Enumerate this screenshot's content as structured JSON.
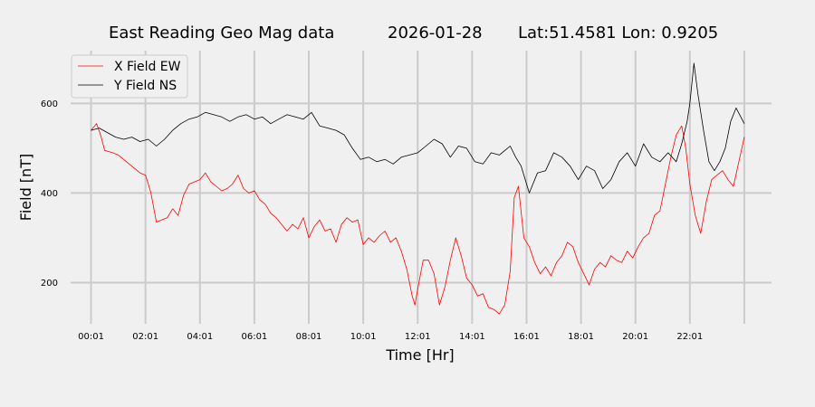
{
  "chart_data": {
    "type": "line",
    "title_parts": [
      "East Reading Geo Mag data",
      "2026-01-28",
      "Lat:51.4581  Lon: 0.9205"
    ],
    "xlabel": "Time  [Hr]",
    "ylabel": "Field  [nT]",
    "x_ticks": [
      "00:01",
      "02:01",
      "04:01",
      "06:01",
      "08:01",
      "10:01",
      "12:01",
      "14:01",
      "16:01",
      "18:01",
      "20:01",
      "22:01"
    ],
    "x_tick_hours": [
      0,
      2,
      4,
      6,
      8,
      10,
      12,
      14,
      16,
      18,
      20,
      22
    ],
    "xlim_hours": [
      -0.75,
      25
    ],
    "y_ticks": [
      200,
      400,
      600
    ],
    "ylim": [
      108,
      718
    ],
    "grid": true,
    "legend_position": "top-left",
    "series": [
      {
        "name": "X Field EW",
        "color": "#ff0000",
        "hours": [
          0,
          0.2,
          0.35,
          0.5,
          0.8,
          1.0,
          1.3,
          1.6,
          1.8,
          2.0,
          2.2,
          2.4,
          2.6,
          2.8,
          3.0,
          3.2,
          3.4,
          3.6,
          3.8,
          4.0,
          4.2,
          4.4,
          4.6,
          4.8,
          5.0,
          5.2,
          5.4,
          5.6,
          5.8,
          6.0,
          6.2,
          6.4,
          6.6,
          6.8,
          7.0,
          7.2,
          7.4,
          7.6,
          7.8,
          8.0,
          8.2,
          8.4,
          8.6,
          8.8,
          9.0,
          9.2,
          9.4,
          9.6,
          9.8,
          10.0,
          10.2,
          10.4,
          10.6,
          10.8,
          11.0,
          11.2,
          11.4,
          11.6,
          11.8,
          11.9,
          12.0,
          12.2,
          12.4,
          12.6,
          12.8,
          13.0,
          13.2,
          13.4,
          13.6,
          13.8,
          14.0,
          14.2,
          14.4,
          14.6,
          14.8,
          15.0,
          15.2,
          15.4,
          15.55,
          15.7,
          15.9,
          16.1,
          16.3,
          16.5,
          16.7,
          16.9,
          17.1,
          17.3,
          17.5,
          17.7,
          17.9,
          18.1,
          18.3,
          18.5,
          18.7,
          18.9,
          19.1,
          19.3,
          19.5,
          19.7,
          19.9,
          20.1,
          20.3,
          20.5,
          20.7,
          20.9,
          21.1,
          21.3,
          21.5,
          21.7,
          21.85,
          22.0,
          22.2,
          22.4,
          22.6,
          22.8,
          23.0,
          23.2,
          23.4,
          23.6,
          23.8,
          24.0
        ],
        "values": [
          540,
          555,
          530,
          495,
          490,
          485,
          470,
          455,
          445,
          440,
          400,
          335,
          340,
          345,
          365,
          350,
          395,
          420,
          425,
          430,
          445,
          425,
          415,
          405,
          410,
          420,
          440,
          410,
          400,
          405,
          385,
          375,
          355,
          345,
          330,
          315,
          330,
          320,
          345,
          300,
          325,
          340,
          315,
          320,
          290,
          330,
          345,
          335,
          340,
          285,
          300,
          290,
          305,
          315,
          290,
          300,
          270,
          230,
          170,
          150,
          185,
          250,
          250,
          220,
          150,
          190,
          250,
          300,
          260,
          210,
          195,
          170,
          175,
          145,
          140,
          130,
          150,
          225,
          390,
          415,
          300,
          280,
          245,
          220,
          235,
          215,
          245,
          260,
          290,
          280,
          245,
          220,
          195,
          230,
          245,
          235,
          260,
          250,
          245,
          270,
          255,
          280,
          300,
          310,
          350,
          360,
          420,
          480,
          530,
          550,
          500,
          420,
          350,
          310,
          380,
          430,
          440,
          450,
          430,
          415,
          470,
          525
        ]
      },
      {
        "name": "Y Field NS",
        "color": "#000000",
        "hours": [
          0,
          0.3,
          0.6,
          0.9,
          1.2,
          1.5,
          1.8,
          2.1,
          2.4,
          2.7,
          3.0,
          3.3,
          3.6,
          3.9,
          4.2,
          4.5,
          4.8,
          5.1,
          5.4,
          5.7,
          6.0,
          6.3,
          6.6,
          6.9,
          7.2,
          7.5,
          7.8,
          8.1,
          8.4,
          8.7,
          9.0,
          9.3,
          9.6,
          9.9,
          10.2,
          10.5,
          10.8,
          11.1,
          11.4,
          11.7,
          12.0,
          12.3,
          12.6,
          12.9,
          13.2,
          13.5,
          13.8,
          14.1,
          14.4,
          14.7,
          15.0,
          15.2,
          15.4,
          15.6,
          15.8,
          16.1,
          16.4,
          16.7,
          17.0,
          17.3,
          17.6,
          17.9,
          18.2,
          18.5,
          18.8,
          19.1,
          19.4,
          19.7,
          20.0,
          20.3,
          20.6,
          20.9,
          21.2,
          21.5,
          21.7,
          21.9,
          22.0,
          22.15,
          22.3,
          22.5,
          22.7,
          22.9,
          23.1,
          23.3,
          23.5,
          23.7,
          24.0
        ],
        "values": [
          540,
          545,
          535,
          525,
          520,
          525,
          515,
          520,
          505,
          520,
          540,
          555,
          565,
          570,
          580,
          575,
          570,
          560,
          570,
          575,
          565,
          570,
          555,
          565,
          575,
          570,
          565,
          580,
          550,
          545,
          540,
          530,
          500,
          475,
          480,
          470,
          475,
          465,
          480,
          485,
          490,
          505,
          520,
          510,
          480,
          505,
          500,
          470,
          465,
          490,
          485,
          495,
          505,
          480,
          460,
          400,
          445,
          450,
          490,
          480,
          460,
          430,
          460,
          450,
          410,
          430,
          470,
          490,
          460,
          510,
          480,
          470,
          490,
          470,
          510,
          560,
          600,
          690,
          620,
          540,
          470,
          450,
          470,
          500,
          560,
          590,
          555
        ]
      }
    ]
  }
}
